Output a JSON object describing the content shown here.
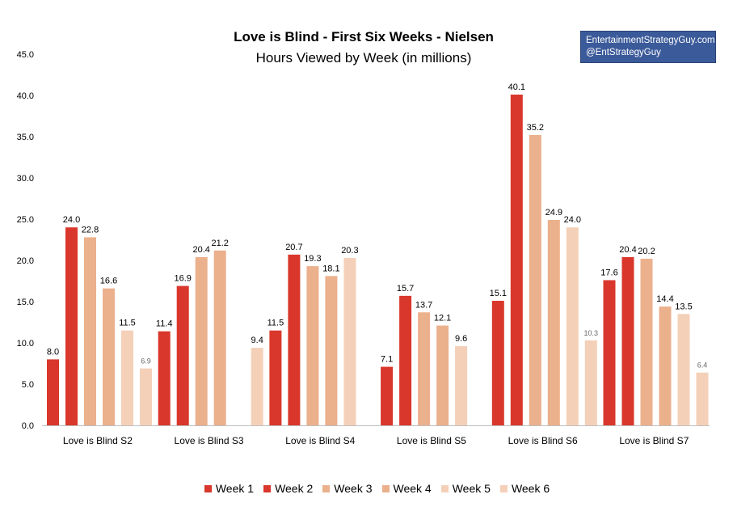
{
  "chart_data": {
    "type": "bar",
    "title": "Love is Blind - First Six Weeks - Nielsen",
    "subtitle": "Hours Viewed by Week (in millions)",
    "categories": [
      "Love is Blind S2",
      "Love is Blind S3",
      "Love is Blind S4",
      "Love is Blind S5",
      "Love is Blind S6",
      "Love is Blind S7"
    ],
    "series": [
      {
        "name": "Week 1",
        "color": "#d9372b",
        "values": [
          8.0,
          11.4,
          11.5,
          7.1,
          15.1,
          17.6
        ]
      },
      {
        "name": "Week 2",
        "color": "#d9372b",
        "values": [
          24.0,
          16.9,
          20.7,
          15.7,
          40.1,
          20.4
        ]
      },
      {
        "name": "Week 3",
        "color": "#ebb08c",
        "values": [
          22.8,
          20.4,
          19.3,
          13.7,
          35.2,
          20.2
        ]
      },
      {
        "name": "Week 4",
        "color": "#ebb08c",
        "values": [
          16.6,
          21.2,
          18.1,
          12.1,
          24.9,
          14.4
        ]
      },
      {
        "name": "Week 5",
        "color": "#f4d0b8",
        "values": [
          11.5,
          null,
          20.3,
          9.6,
          24.0,
          13.5
        ]
      },
      {
        "name": "Week 6",
        "color": "#f4d0b8",
        "values": [
          6.9,
          9.4,
          null,
          null,
          10.3,
          6.4
        ]
      }
    ],
    "small_labels": [
      [
        5,
        0
      ],
      [
        5,
        4
      ],
      [
        5,
        5
      ]
    ],
    "ylim": [
      0,
      45
    ],
    "yticks": [
      "0.0",
      "5.0",
      "10.0",
      "15.0",
      "20.0",
      "25.0",
      "30.0",
      "35.0",
      "40.0",
      "45.0"
    ],
    "legend_position": "bottom",
    "grid": false
  },
  "brand": {
    "line1": "EntertainmentStrategyGuy.com",
    "line2": "@EntStrategyGuy"
  }
}
